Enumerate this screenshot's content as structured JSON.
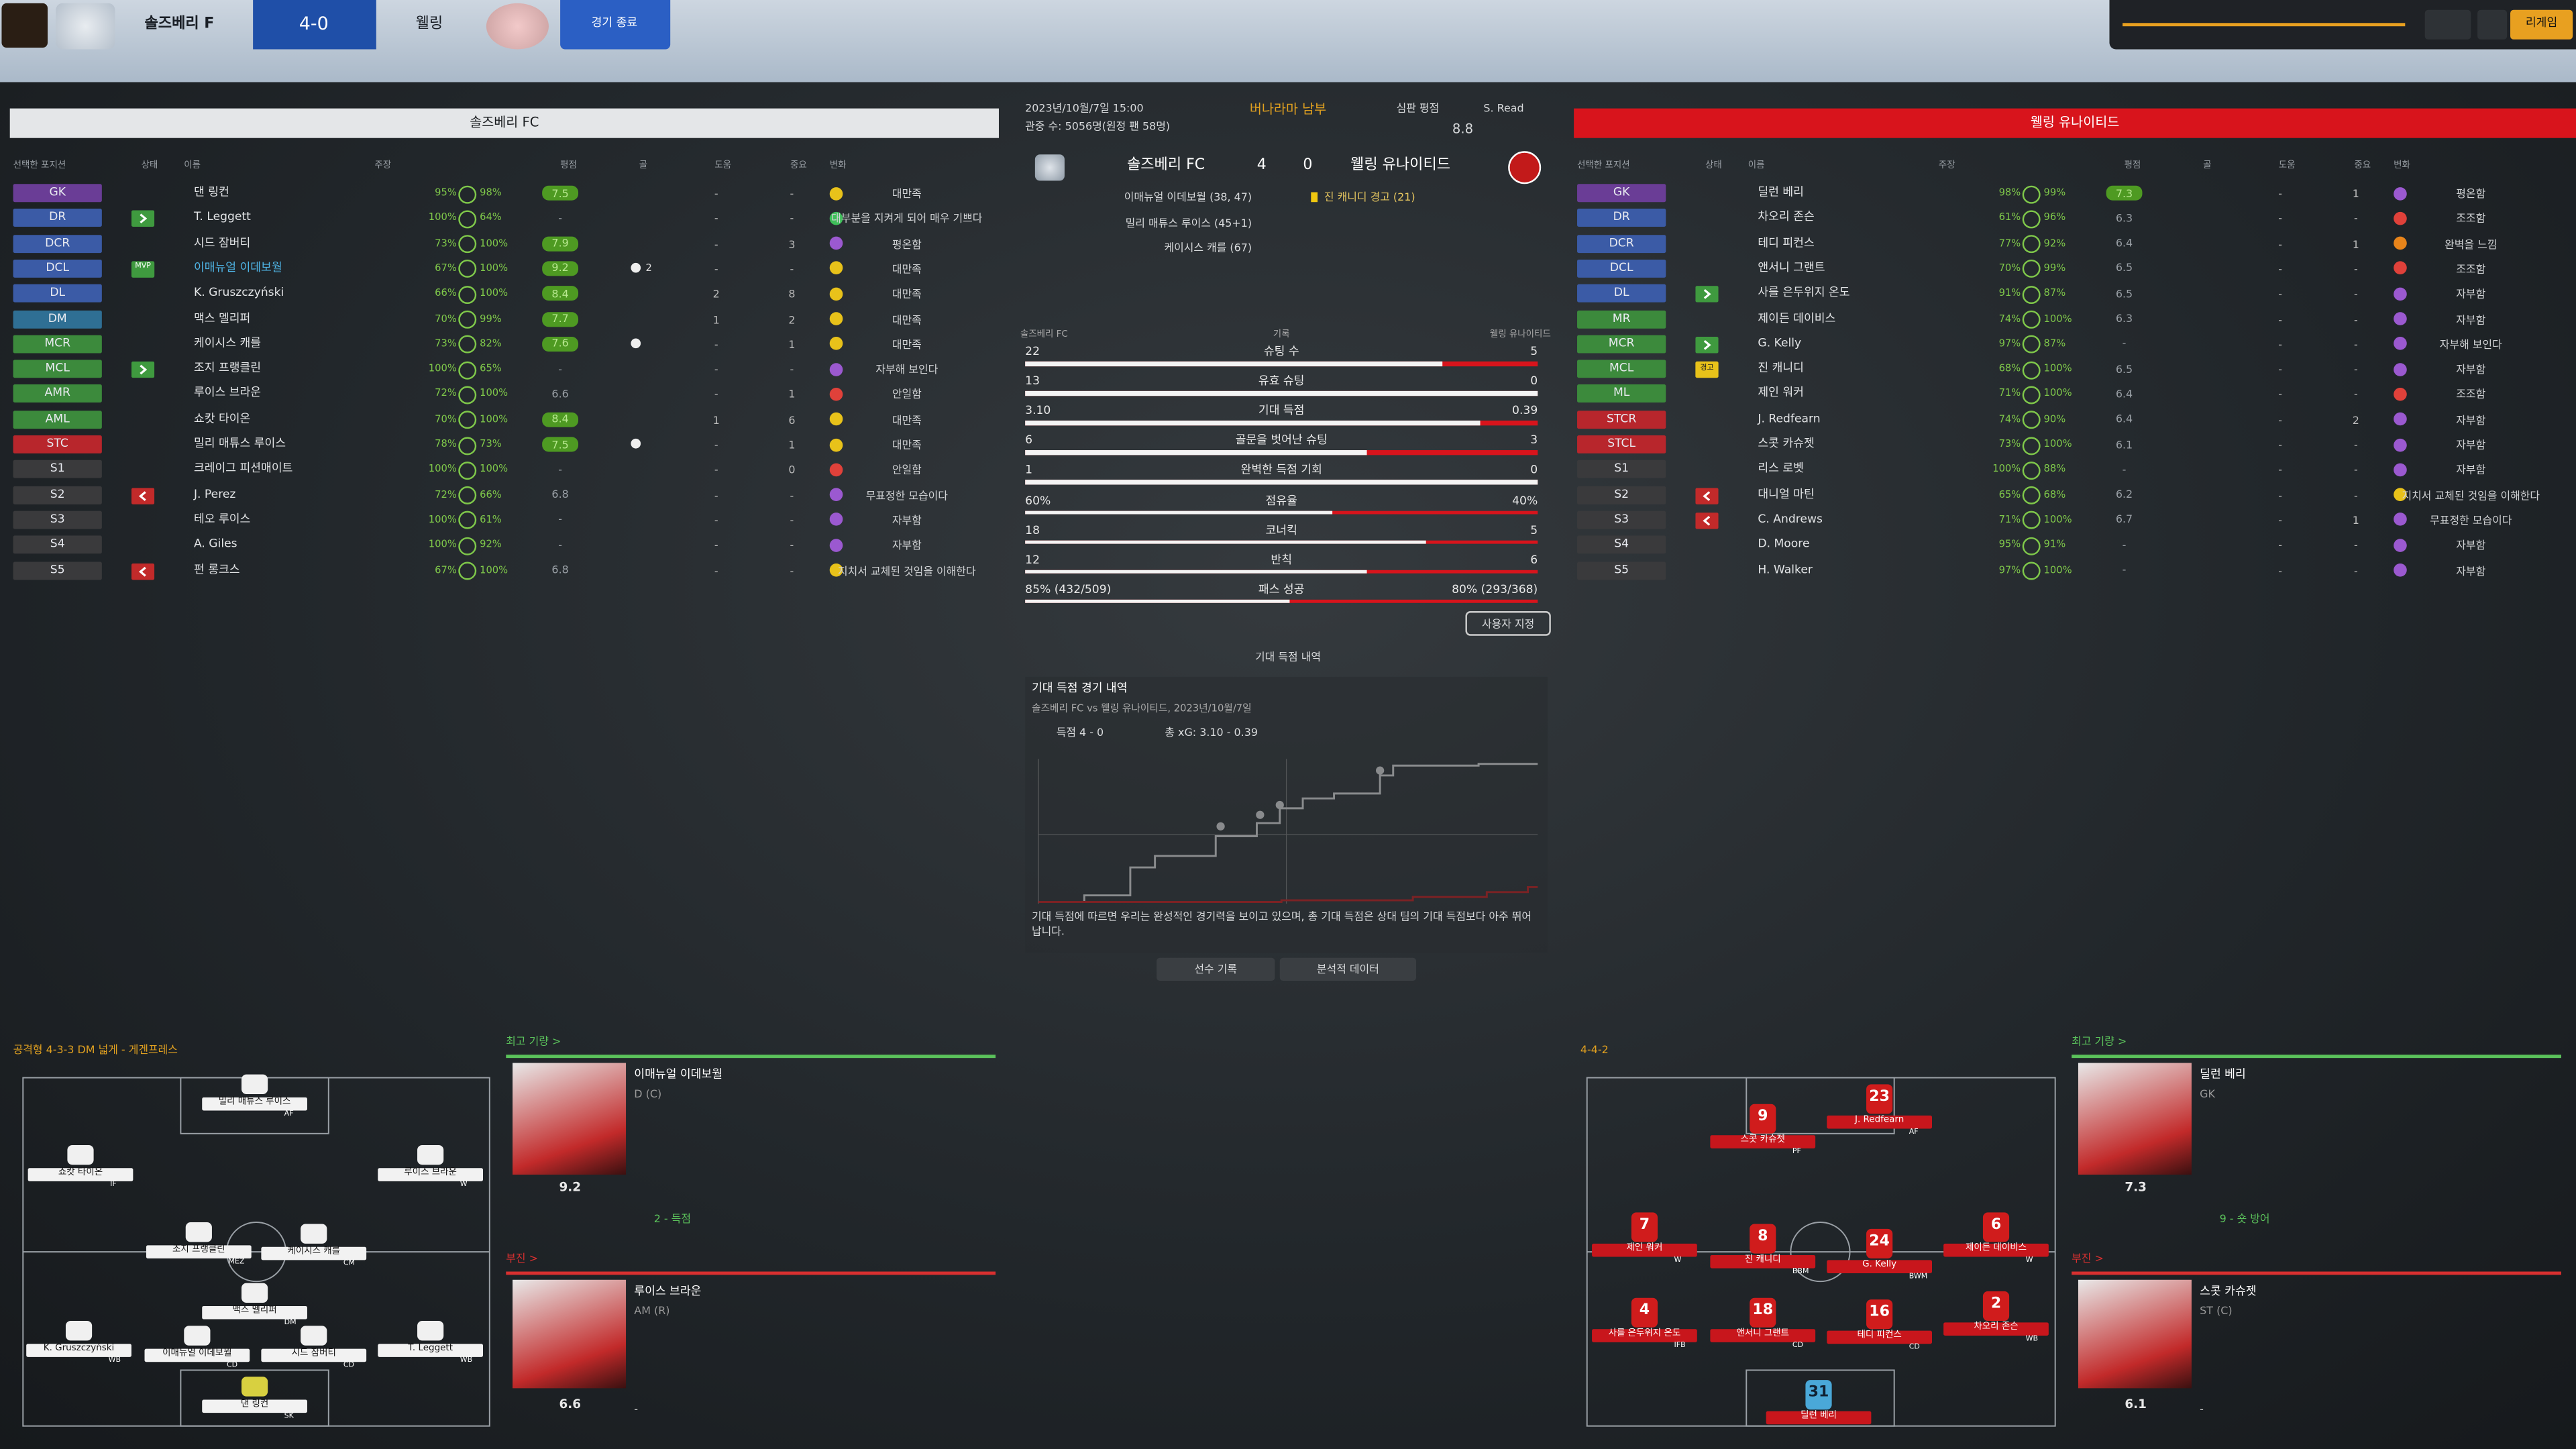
{
  "header": {
    "home_team": "솔즈베리 F",
    "score": "4-0",
    "away_team": "웰링",
    "end_button": "경기 종료",
    "continue_button": "리게임"
  },
  "columns": [
    "선택한 포지션",
    "상태",
    "이름",
    "주장",
    "평점",
    "골",
    "도움",
    "중요",
    "변화"
  ],
  "home": {
    "title": "솔즈베리 FC",
    "rows": [
      {
        "pos": "GK",
        "pc": "#6a3d96",
        "name": "댄 링컨",
        "cond": "95%",
        "sharp": "98%",
        "rating": "7.5",
        "a": "-",
        "b": "-",
        "morale": "대만족",
        "mc": "#e8c21a"
      },
      {
        "pos": "DR",
        "pc": "#3b5ba6",
        "sub": "in",
        "name": "T. Leggett",
        "cond": "100%",
        "sharp": "64%",
        "rating": "-",
        "a": "-",
        "b": "-",
        "morale": "대부분을 지켜게 되어 매우 기쁘다",
        "mc": "#3fbf5a"
      },
      {
        "pos": "DCR",
        "pc": "#3b5ba6",
        "name": "시드 잠버티",
        "cond": "73%",
        "sharp": "100%",
        "rating": "7.9",
        "a": "-",
        "b": "3",
        "morale": "평온함",
        "mc": "#9b59d0"
      },
      {
        "pos": "DCL",
        "pc": "#3b5ba6",
        "badge": "MVP",
        "name": "이매뉴얼 이데보월",
        "cond": "67%",
        "sharp": "100%",
        "rating": "9.2",
        "goals": "2",
        "a": "-",
        "b": "-",
        "morale": "대만족",
        "mc": "#e8c21a"
      },
      {
        "pos": "DL",
        "pc": "#3b5ba6",
        "name": "K. Gruszczyński",
        "cond": "66%",
        "sharp": "100%",
        "rating": "8.4",
        "a": "2",
        "b": "8",
        "morale": "대만족",
        "mc": "#e8c21a"
      },
      {
        "pos": "DM",
        "pc": "#2f6f94",
        "name": "맥스 멜리퍼",
        "cond": "70%",
        "sharp": "99%",
        "rating": "7.7",
        "a": "1",
        "b": "2",
        "morale": "대만족",
        "mc": "#e8c21a"
      },
      {
        "pos": "MCR",
        "pc": "#3c8a3c",
        "name": "케이시스 캐를",
        "cond": "73%",
        "sharp": "82%",
        "rating": "7.6",
        "goals": "1",
        "a": "-",
        "b": "1",
        "morale": "대만족",
        "mc": "#e8c21a"
      },
      {
        "pos": "MCL",
        "pc": "#3c8a3c",
        "sub": "in",
        "name": "조지 프랭클린",
        "cond": "100%",
        "sharp": "65%",
        "rating": "-",
        "a": "-",
        "b": "-",
        "morale": "자부해 보인다",
        "mc": "#9b59d0"
      },
      {
        "pos": "AMR",
        "pc": "#3c8a3c",
        "name": "루이스 브라운",
        "cond": "72%",
        "sharp": "100%",
        "rating": "6.6",
        "a": "-",
        "b": "1",
        "morale": "안일함",
        "mc": "#e0413a"
      },
      {
        "pos": "AML",
        "pc": "#3c8a3c",
        "name": "쇼캇 타이온",
        "cond": "70%",
        "sharp": "100%",
        "rating": "8.4",
        "a": "1",
        "b": "6",
        "morale": "대만족",
        "mc": "#e8c21a"
      },
      {
        "pos": "STC",
        "pc": "#b8262c",
        "name": "밀리 매튜스 루이스",
        "cond": "78%",
        "sharp": "73%",
        "rating": "7.5",
        "goals": "1",
        "a": "-",
        "b": "1",
        "morale": "대만족",
        "mc": "#e8c21a"
      },
      {
        "pos": "S1",
        "pc": "#3a3a3c",
        "name": "크레이그 피션매이트",
        "cond": "100%",
        "sharp": "100%",
        "rating": "-",
        "a": "-",
        "b": "0",
        "morale": "안일함",
        "mc": "#e0413a"
      },
      {
        "pos": "S2",
        "pc": "#3a3a3c",
        "sub": "out",
        "name": "J. Perez",
        "cond": "72%",
        "sharp": "66%",
        "rating": "6.8",
        "a": "-",
        "b": "-",
        "morale": "무표정한 모습이다",
        "mc": "#9b59d0"
      },
      {
        "pos": "S3",
        "pc": "#3a3a3c",
        "name": "테오 루이스",
        "cond": "100%",
        "sharp": "61%",
        "rating": "-",
        "a": "-",
        "b": "-",
        "morale": "자부함",
        "mc": "#9b59d0"
      },
      {
        "pos": "S4",
        "pc": "#3a3a3c",
        "name": "A. Giles",
        "cond": "100%",
        "sharp": "92%",
        "rating": "-",
        "a": "-",
        "b": "-",
        "morale": "자부함",
        "mc": "#9b59d0"
      },
      {
        "pos": "S5",
        "pc": "#3a3a3c",
        "sub": "out",
        "name": "펀 롱크스",
        "cond": "67%",
        "sharp": "100%",
        "rating": "6.8",
        "a": "-",
        "b": "-",
        "morale": "지치서 교체된 것임을 이해한다",
        "mc": "#e8c21a"
      }
    ]
  },
  "away": {
    "title": "웰링 유나이티드",
    "rows": [
      {
        "pos": "GK",
        "pc": "#6a3d96",
        "name": "딜런 베리",
        "cond": "98%",
        "sharp": "99%",
        "rating": "7.3",
        "a": "-",
        "b": "1",
        "morale": "평온함",
        "mc": "#9b59d0"
      },
      {
        "pos": "DR",
        "pc": "#3b5ba6",
        "name": "차오리 존슨",
        "cond": "61%",
        "sharp": "96%",
        "rating": "6.3",
        "a": "-",
        "b": "-",
        "morale": "조조함",
        "mc": "#e0413a"
      },
      {
        "pos": "DCR",
        "pc": "#3b5ba6",
        "name": "테디 피컨스",
        "cond": "77%",
        "sharp": "92%",
        "rating": "6.4",
        "a": "-",
        "b": "1",
        "morale": "완벽을 느낌",
        "mc": "#e8841a"
      },
      {
        "pos": "DCL",
        "pc": "#3b5ba6",
        "name": "앤서니 그랜트",
        "cond": "70%",
        "sharp": "99%",
        "rating": "6.5",
        "a": "-",
        "b": "-",
        "morale": "조조함",
        "mc": "#e0413a"
      },
      {
        "pos": "DL",
        "pc": "#3b5ba6",
        "sub": "in",
        "name": "사를 은두위지 온도",
        "cond": "91%",
        "sharp": "87%",
        "rating": "6.5",
        "a": "-",
        "b": "-",
        "morale": "자부함",
        "mc": "#9b59d0"
      },
      {
        "pos": "MR",
        "pc": "#3c8a3c",
        "name": "제이든 데이비스",
        "cond": "74%",
        "sharp": "100%",
        "rating": "6.3",
        "a": "-",
        "b": "-",
        "morale": "자부함",
        "mc": "#9b59d0"
      },
      {
        "pos": "MCR",
        "pc": "#3c8a3c",
        "sub": "in",
        "name": "G. Kelly",
        "cond": "97%",
        "sharp": "87%",
        "rating": "-",
        "a": "-",
        "b": "-",
        "morale": "자부해 보인다",
        "mc": "#9b59d0"
      },
      {
        "pos": "MCL",
        "pc": "#3c8a3c",
        "badge": "경고",
        "name": "진 캐니디",
        "cond": "68%",
        "sharp": "100%",
        "rating": "6.5",
        "a": "-",
        "b": "-",
        "morale": "자부함",
        "mc": "#9b59d0"
      },
      {
        "pos": "ML",
        "pc": "#3c8a3c",
        "name": "제인 워커",
        "cond": "71%",
        "sharp": "100%",
        "rating": "6.4",
        "a": "-",
        "b": "-",
        "morale": "조조함",
        "mc": "#e0413a"
      },
      {
        "pos": "STCR",
        "pc": "#b8262c",
        "name": "J. Redfearn",
        "cond": "74%",
        "sharp": "90%",
        "rating": "6.4",
        "a": "-",
        "b": "2",
        "morale": "자부함",
        "mc": "#9b59d0"
      },
      {
        "pos": "STCL",
        "pc": "#b8262c",
        "name": "스콧 카슈젯",
        "cond": "73%",
        "sharp": "100%",
        "rating": "6.1",
        "a": "-",
        "b": "-",
        "morale": "자부함",
        "mc": "#9b59d0"
      },
      {
        "pos": "S1",
        "pc": "#3a3a3c",
        "name": "리스 로벳",
        "cond": "100%",
        "sharp": "88%",
        "rating": "-",
        "a": "-",
        "b": "-",
        "morale": "자부함",
        "mc": "#9b59d0"
      },
      {
        "pos": "S2",
        "pc": "#3a3a3c",
        "sub": "out",
        "name": "대니얼 마틴",
        "cond": "65%",
        "sharp": "68%",
        "rating": "6.2",
        "a": "-",
        "b": "-",
        "morale": "지치서 교체된 것임을 이해한다",
        "mc": "#e8c21a"
      },
      {
        "pos": "S3",
        "pc": "#3a3a3c",
        "sub": "out",
        "name": "C. Andrews",
        "cond": "71%",
        "sharp": "100%",
        "rating": "6.7",
        "a": "-",
        "b": "1",
        "morale": "무표정한 모습이다",
        "mc": "#9b59d0"
      },
      {
        "pos": "S4",
        "pc": "#3a3a3c",
        "name": "D. Moore",
        "cond": "95%",
        "sharp": "91%",
        "rating": "-",
        "a": "-",
        "b": "-",
        "morale": "자부함",
        "mc": "#9b59d0"
      },
      {
        "pos": "S5",
        "pc": "#3a3a3c",
        "name": "H. Walker",
        "cond": "97%",
        "sharp": "100%",
        "rating": "-",
        "a": "-",
        "b": "-",
        "morale": "자부함",
        "mc": "#9b59d0"
      }
    ]
  },
  "match": {
    "date": "2023년/10월/7일 15:00",
    "attendance": "관중 수: 5056명(원정 팬 58명)",
    "stadium": "버나라마 남부",
    "referee_label": "심판 평점",
    "referee": "S. Read",
    "referee_rating": "8.8",
    "home_team": "솔즈베리 FC",
    "home_goals": "4",
    "away_goals": "0",
    "away_team": "웰링 유나이티드",
    "home_scorers": [
      "이매뉴얼 이데보월 (38, 47)",
      "밀리 매튜스 루이스 (45+1)",
      "케이시스 캐를 (67)"
    ],
    "away_events": [
      "진 캐니디 경고 (21)"
    ]
  },
  "stats": {
    "home": "솔즈베리 FC",
    "label": "기록",
    "away": "웰링 유나이티드",
    "rows": [
      {
        "name": "슈팅 수",
        "home": "22",
        "away": "5"
      },
      {
        "name": "유효 슈팅",
        "home": "13",
        "away": "0"
      },
      {
        "name": "기대 득점",
        "home": "3.10",
        "away": "0.39"
      },
      {
        "name": "골문을 벗어난 슈팅",
        "home": "6",
        "away": "3"
      },
      {
        "name": "완벽한 득점 기회",
        "home": "1",
        "away": "0"
      },
      {
        "name": "점유율",
        "home": "60%",
        "away": "40%"
      },
      {
        "name": "코너킥",
        "home": "18",
        "away": "5"
      },
      {
        "name": "반칙",
        "home": "12",
        "away": "6"
      },
      {
        "name": "패스 성공",
        "home": "85% (432/509)",
        "away": "80% (293/368)"
      }
    ],
    "custom_button": "사용자 지정"
  },
  "xg": {
    "dropdown": "기대 득점 내역",
    "title": "기대 득점 경기 내역",
    "subtitle": "솔즈베리 FC vs 웰링 유나이티드, 2023년/10월/7일",
    "goals": "득점 4 - 0",
    "total": "총 xG: 3.10 - 0.39",
    "caption": "기대 득점에 따르면 우리는 완성적인 경기력을 보이고 있으며, 총 기대 득점은 상대 팀의 기대 득점보다 아주 뛰어납니다.",
    "buttons": [
      "선수 기록",
      "분석적 데이터"
    ]
  },
  "home_bottom": {
    "formation": "공격형 4-3-3 DM 넓게 - 게겐프레스",
    "pitch": [
      {
        "name": "밀리 매튜스 루이스",
        "role": "AF"
      },
      {
        "name": "쇼캇 타이온",
        "role": "IF"
      },
      {
        "name": "루이스 브라운",
        "role": "W"
      },
      {
        "name": "조지 프랭클린",
        "role": "MEZ"
      },
      {
        "name": "케이시스 캐를",
        "role": "CM"
      },
      {
        "name": "맥스 멜리퍼",
        "role": "DM"
      },
      {
        "name": "K. Gruszczyński",
        "role": "WB"
      },
      {
        "name": "이매뉴얼 이데보월",
        "role": "CD"
      },
      {
        "name": "시드 잠버티",
        "role": "CD"
      },
      {
        "name": "T. Leggett",
        "role": "WB"
      },
      {
        "name": "댄 링컨",
        "role": "SK"
      }
    ],
    "best_label": "최고 기량 >",
    "best": {
      "name": "이매뉴얼 이데보월",
      "pos": "D (C)",
      "rating": "9.2",
      "note": "2 - 득점"
    },
    "worst_label": "부진 >",
    "worst": {
      "name": "루이스 브라운",
      "pos": "AM (R)",
      "rating": "6.6",
      "note": "-"
    }
  },
  "away_bottom": {
    "formation": "4-4-2",
    "pitch": [
      {
        "num": "9",
        "name": "스콧 카슈젯",
        "role": "PF"
      },
      {
        "num": "23",
        "name": "J. Redfearn",
        "role": "AF"
      },
      {
        "num": "7",
        "name": "제인 워커",
        "role": "W"
      },
      {
        "num": "8",
        "name": "진 캐니디",
        "role": "BBM"
      },
      {
        "num": "24",
        "name": "G. Kelly",
        "role": "BWM"
      },
      {
        "num": "6",
        "name": "제이든 데이비스",
        "role": "W"
      },
      {
        "num": "4",
        "name": "사를 은두위지 온도",
        "role": "IFB"
      },
      {
        "num": "18",
        "name": "앤서니 그랜트",
        "role": "CD"
      },
      {
        "num": "16",
        "name": "테디 피컨스",
        "role": "CD"
      },
      {
        "num": "2",
        "name": "차오리 존슨",
        "role": "WB"
      },
      {
        "num": "31",
        "name": "딜런 베리"
      }
    ],
    "best_label": "최고 기량 >",
    "best": {
      "name": "딜런 베리",
      "pos": "GK",
      "rating": "7.3",
      "note": "9 - 숏 방어"
    },
    "worst_label": "부진 >",
    "worst": {
      "name": "스콧 카슈젯",
      "pos": "ST (C)",
      "rating": "6.1",
      "note": "-"
    }
  }
}
